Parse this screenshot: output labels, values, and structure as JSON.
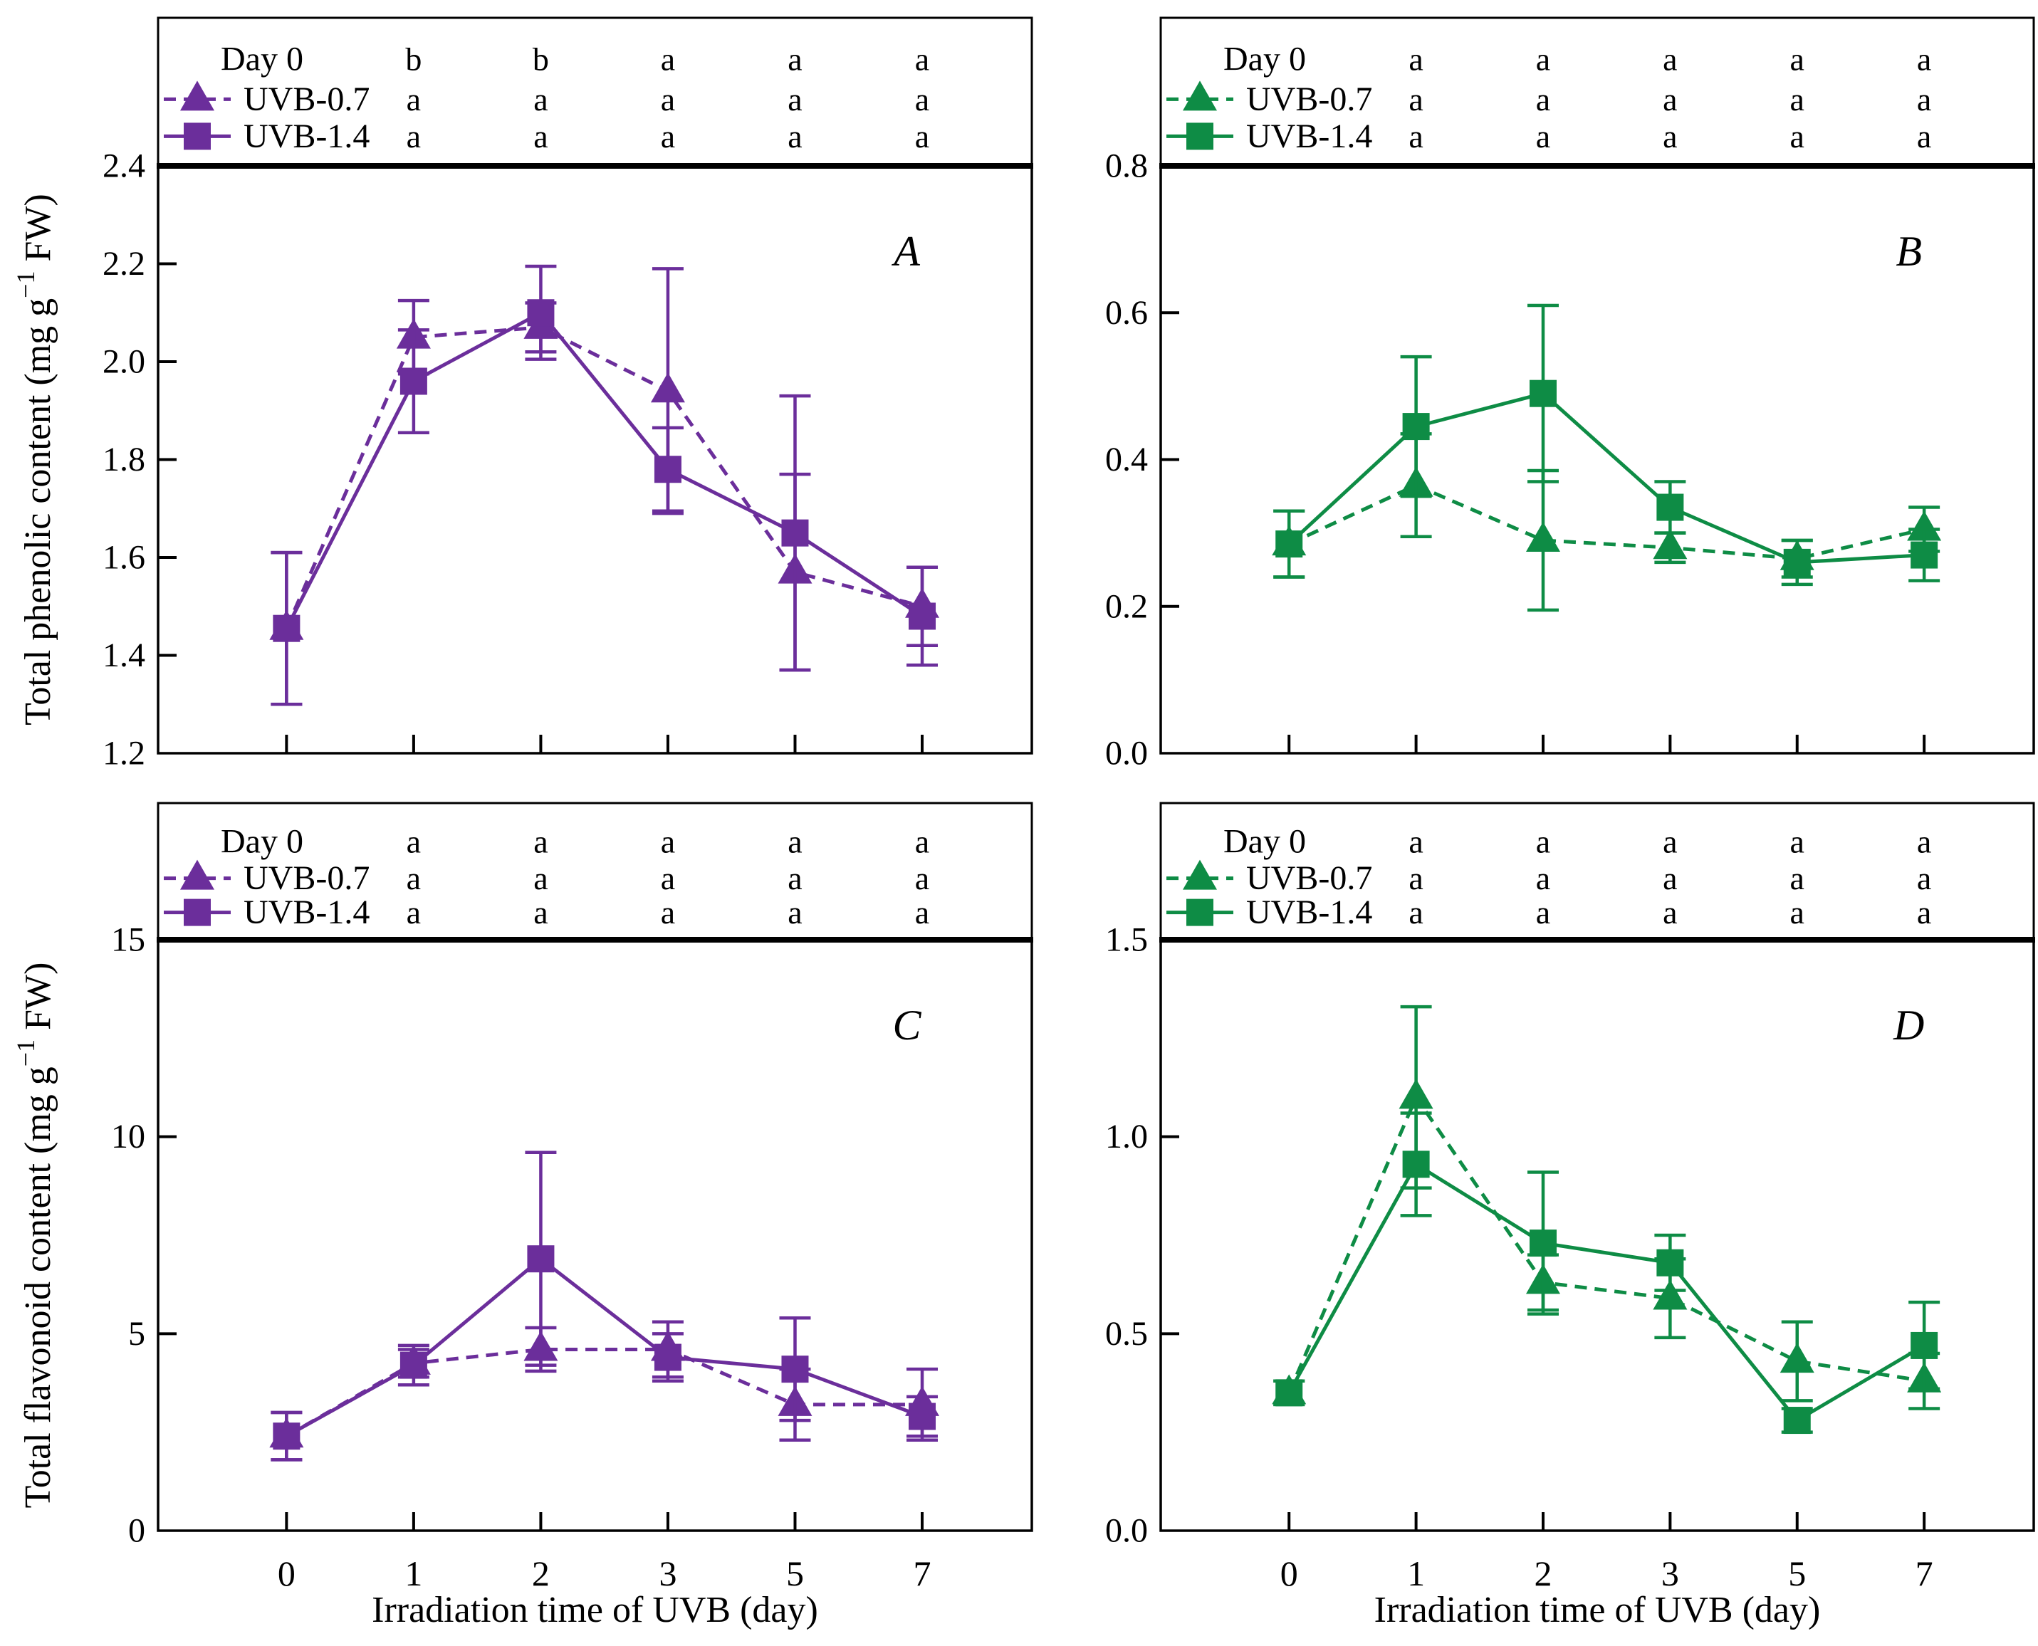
{
  "figure": {
    "x_categories": [
      "0",
      "1",
      "2",
      "3",
      "5",
      "7"
    ],
    "x_axis_title": "Irradiation time of UVB (day)",
    "purple": "#6b2e9b",
    "green": "#0e8c45"
  },
  "chart_data": [
    {
      "type": "line",
      "panel_label": "A",
      "color": "#6b2e9b",
      "ylabel": {
        "pre": "Total phenolic content (mg g",
        "sup": "−1",
        "post": " FW)"
      },
      "xlabel": "",
      "ylim": [
        1.2,
        2.4
      ],
      "yticks": [
        "2.4",
        "2.2",
        "2.0",
        "1.8",
        "1.6",
        "1.4",
        "1.2"
      ],
      "x_categories": [
        "0",
        "1",
        "2",
        "3",
        "5",
        "7"
      ],
      "x": [
        0,
        1,
        2,
        3,
        5,
        7
      ],
      "legend": {
        "control": "Day 0",
        "position": "top"
      },
      "letters": [
        [
          "b",
          "b",
          "a",
          "a",
          "a"
        ],
        [
          "a",
          "a",
          "a",
          "a",
          "a"
        ],
        [
          "a",
          "a",
          "a",
          "a",
          "a"
        ]
      ],
      "series": [
        {
          "name": "UVB-0.7",
          "marker": "triangle",
          "line": "dashed",
          "values": [
            1.455,
            2.05,
            2.07,
            1.94,
            1.57,
            1.5
          ],
          "errors": [
            0.155,
            0.075,
            0.05,
            0.25,
            0.2,
            0.08
          ]
        },
        {
          "name": "UVB-1.4",
          "marker": "square",
          "line": "solid",
          "values": [
            1.455,
            1.96,
            2.1,
            1.78,
            1.65,
            1.48
          ],
          "errors": [
            0.155,
            0.105,
            0.095,
            0.085,
            0.28,
            0.1
          ]
        }
      ]
    },
    {
      "type": "line",
      "panel_label": "B",
      "color": "#0e8c45",
      "ylabel": null,
      "xlabel": "",
      "ylim": [
        0.0,
        0.8
      ],
      "yticks": [
        "0.8",
        "0.6",
        "0.4",
        "0.2",
        "0.0"
      ],
      "x_categories": [
        "0",
        "1",
        "2",
        "3",
        "5",
        "7"
      ],
      "x": [
        0,
        1,
        2,
        3,
        5,
        7
      ],
      "legend": {
        "control": "Day 0",
        "position": "top"
      },
      "letters": [
        [
          "a",
          "a",
          "a",
          "a",
          "a"
        ],
        [
          "a",
          "a",
          "a",
          "a",
          "a"
        ],
        [
          "a",
          "a",
          "a",
          "a",
          "a"
        ]
      ],
      "series": [
        {
          "name": "UVB-0.7",
          "marker": "triangle",
          "line": "dashed",
          "values": [
            0.285,
            0.365,
            0.29,
            0.28,
            0.265,
            0.305
          ],
          "errors": [
            0.045,
            0.07,
            0.095,
            0.02,
            0.025,
            0.03
          ]
        },
        {
          "name": "UVB-1.4",
          "marker": "square",
          "line": "solid",
          "values": [
            0.285,
            0.445,
            0.49,
            0.335,
            0.26,
            0.27
          ],
          "errors": [
            0.045,
            0.095,
            0.12,
            0.035,
            0.03,
            0.035
          ]
        }
      ]
    },
    {
      "type": "line",
      "panel_label": "C",
      "color": "#6b2e9b",
      "ylabel": {
        "pre": "Total flavonoid content (mg g",
        "sup": "−1",
        "post": " FW)"
      },
      "xlabel": "Irradiation time of UVB (day)",
      "ylim": [
        0,
        15
      ],
      "yticks": [
        "15",
        "10",
        "5",
        "0"
      ],
      "x_categories": [
        "0",
        "1",
        "2",
        "3",
        "5",
        "7"
      ],
      "x": [
        0,
        1,
        2,
        3,
        5,
        7
      ],
      "legend": {
        "control": "Day 0",
        "position": "top"
      },
      "letters": [
        [
          "a",
          "a",
          "a",
          "a",
          "a"
        ],
        [
          "a",
          "a",
          "a",
          "a",
          "a"
        ],
        [
          "a",
          "a",
          "a",
          "a",
          "a"
        ]
      ],
      "series": [
        {
          "name": "UVB-0.7",
          "marker": "triangle",
          "line": "dashed",
          "values": [
            2.4,
            4.25,
            4.6,
            4.6,
            3.2,
            3.2
          ],
          "errors": [
            0.6,
            0.35,
            0.55,
            0.7,
            0.9,
            0.9
          ]
        },
        {
          "name": "UVB-1.4",
          "marker": "square",
          "line": "solid",
          "values": [
            2.4,
            4.2,
            6.9,
            4.4,
            4.1,
            2.9
          ],
          "errors": [
            0.6,
            0.5,
            2.7,
            0.6,
            1.3,
            0.5
          ]
        }
      ]
    },
    {
      "type": "line",
      "panel_label": "D",
      "color": "#0e8c45",
      "ylabel": null,
      "xlabel": "Irradiation time of UVB (day)",
      "ylim": [
        0.0,
        1.5
      ],
      "yticks": [
        "1.5",
        "1.0",
        "0.5",
        "0.0"
      ],
      "x_categories": [
        "0",
        "1",
        "2",
        "3",
        "5",
        "7"
      ],
      "x": [
        0,
        1,
        2,
        3,
        5,
        7
      ],
      "legend": {
        "control": "Day 0",
        "position": "top"
      },
      "letters": [
        [
          "a",
          "a",
          "a",
          "a",
          "a"
        ],
        [
          "a",
          "a",
          "a",
          "a",
          "a"
        ],
        [
          "a",
          "a",
          "a",
          "a",
          "a"
        ]
      ],
      "series": [
        {
          "name": "UVB-0.7",
          "marker": "triangle",
          "line": "dashed",
          "values": [
            0.35,
            1.1,
            0.63,
            0.59,
            0.43,
            0.38
          ],
          "errors": [
            0.03,
            0.23,
            0.07,
            0.1,
            0.1,
            0.07
          ]
        },
        {
          "name": "UVB-1.4",
          "marker": "square",
          "line": "solid",
          "values": [
            0.35,
            0.93,
            0.73,
            0.68,
            0.28,
            0.47
          ],
          "errors": [
            0.03,
            0.13,
            0.18,
            0.07,
            0.03,
            0.11
          ]
        }
      ]
    }
  ]
}
